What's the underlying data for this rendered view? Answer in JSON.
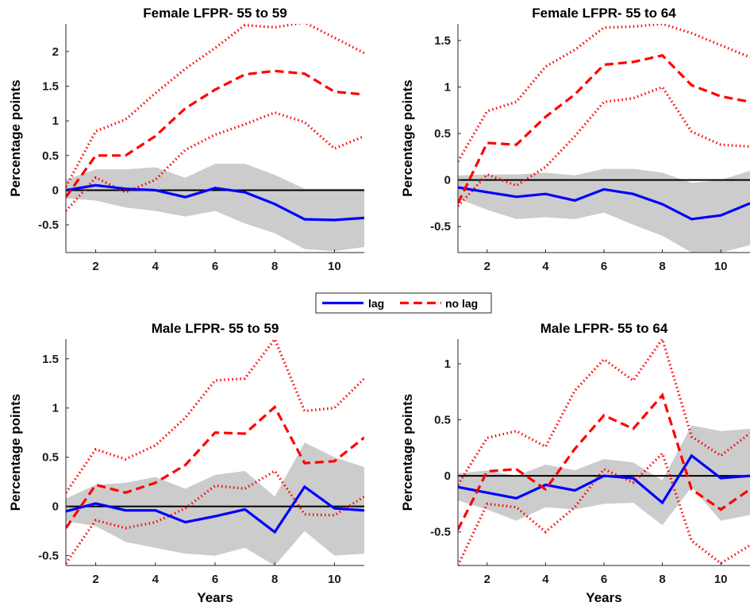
{
  "legend": {
    "location": "center",
    "entries": [
      {
        "label": "lag",
        "color": "#0000ff",
        "style": "solid"
      },
      {
        "label": "no lag",
        "color": "#ff0000",
        "style": "dashed"
      }
    ]
  },
  "colors": {
    "lag": "#0000ff",
    "no_lag": "#ff0000",
    "band": "#cccccc",
    "zero_line": "#000000"
  },
  "chart_data": [
    {
      "type": "line",
      "title": "Female LFPR- 55 to 59",
      "ylabel": "Percentage points",
      "xlabel": "",
      "xlim": [
        1,
        11
      ],
      "ylim": [
        -0.9,
        2.4
      ],
      "xticks": [
        2,
        4,
        6,
        8,
        10
      ],
      "yticks": [
        -0.5,
        0,
        0.5,
        1,
        1.5,
        2
      ],
      "x": [
        1,
        2,
        3,
        4,
        5,
        6,
        7,
        8,
        9,
        10,
        11
      ],
      "series": [
        {
          "name": "lag",
          "values": [
            0.0,
            0.07,
            0.02,
            0.0,
            -0.1,
            0.03,
            -0.03,
            -0.2,
            -0.42,
            -0.43,
            -0.4
          ]
        },
        {
          "name": "no lag",
          "values": [
            -0.1,
            0.5,
            0.5,
            0.78,
            1.18,
            1.45,
            1.67,
            1.72,
            1.68,
            1.42,
            1.38
          ]
        }
      ],
      "no_lag_band": {
        "upper": [
          0.05,
          0.85,
          1.02,
          1.4,
          1.75,
          2.05,
          2.38,
          2.35,
          2.42,
          2.2,
          1.98
        ],
        "lower": [
          -0.3,
          0.18,
          -0.03,
          0.15,
          0.58,
          0.8,
          0.95,
          1.12,
          0.98,
          0.6,
          0.78
        ]
      },
      "lag_band": {
        "upper": [
          0.15,
          0.3,
          0.3,
          0.33,
          0.18,
          0.38,
          0.38,
          0.22,
          0.02,
          0.02,
          0.02
        ],
        "lower": [
          -0.12,
          -0.15,
          -0.25,
          -0.3,
          -0.38,
          -0.3,
          -0.48,
          -0.62,
          -0.85,
          -0.88,
          -0.82
        ]
      }
    },
    {
      "type": "line",
      "title": "Female LFPR- 55 to 64",
      "ylabel": "Percentage points",
      "xlabel": "",
      "xlim": [
        1,
        11
      ],
      "ylim": [
        -0.78,
        1.68
      ],
      "xticks": [
        2,
        4,
        6,
        8,
        10
      ],
      "yticks": [
        -0.5,
        0,
        0.5,
        1,
        1.5
      ],
      "x": [
        1,
        2,
        3,
        4,
        5,
        6,
        7,
        8,
        9,
        10,
        11
      ],
      "series": [
        {
          "name": "lag",
          "values": [
            -0.08,
            -0.13,
            -0.18,
            -0.15,
            -0.22,
            -0.1,
            -0.15,
            -0.26,
            -0.42,
            -0.38,
            -0.25
          ]
        },
        {
          "name": "no lag",
          "values": [
            -0.25,
            0.4,
            0.38,
            0.68,
            0.92,
            1.24,
            1.27,
            1.34,
            1.02,
            0.9,
            0.84
          ]
        }
      ],
      "no_lag_band": {
        "upper": [
          0.2,
          0.74,
          0.84,
          1.22,
          1.4,
          1.64,
          1.65,
          1.68,
          1.58,
          1.45,
          1.32
        ],
        "lower": [
          -0.28,
          0.06,
          -0.06,
          0.14,
          0.47,
          0.84,
          0.88,
          1.0,
          0.52,
          0.38,
          0.36
        ]
      },
      "lag_band": {
        "upper": [
          0.05,
          0.06,
          0.06,
          0.08,
          0.05,
          0.12,
          0.12,
          0.08,
          -0.03,
          0.0,
          0.1
        ],
        "lower": [
          -0.2,
          -0.32,
          -0.42,
          -0.4,
          -0.42,
          -0.35,
          -0.48,
          -0.6,
          -0.78,
          -0.78,
          -0.7
        ]
      }
    },
    {
      "type": "line",
      "title": "Male LFPR- 55 to 59",
      "ylabel": "Percentage points",
      "xlabel": "Years",
      "xlim": [
        1,
        11
      ],
      "ylim": [
        -0.6,
        1.7
      ],
      "xticks": [
        2,
        4,
        6,
        8,
        10
      ],
      "yticks": [
        -0.5,
        0,
        0.5,
        1,
        1.5
      ],
      "x": [
        1,
        2,
        3,
        4,
        5,
        6,
        7,
        8,
        9,
        10,
        11
      ],
      "series": [
        {
          "name": "lag",
          "values": [
            -0.05,
            0.03,
            -0.04,
            -0.04,
            -0.16,
            -0.1,
            -0.03,
            -0.26,
            0.2,
            -0.02,
            -0.04
          ]
        },
        {
          "name": "no lag",
          "values": [
            -0.22,
            0.22,
            0.14,
            0.24,
            0.42,
            0.75,
            0.74,
            1.01,
            0.44,
            0.46,
            0.7
          ]
        }
      ],
      "no_lag_band": {
        "upper": [
          0.14,
          0.58,
          0.48,
          0.62,
          0.9,
          1.28,
          1.3,
          1.7,
          0.97,
          1.0,
          1.3
        ],
        "lower": [
          -0.58,
          -0.14,
          -0.22,
          -0.16,
          -0.02,
          0.21,
          0.18,
          0.36,
          -0.08,
          -0.09,
          0.1
        ]
      },
      "lag_band": {
        "upper": [
          0.08,
          0.22,
          0.24,
          0.3,
          0.18,
          0.32,
          0.36,
          0.1,
          0.65,
          0.5,
          0.4
        ],
        "lower": [
          -0.15,
          -0.2,
          -0.36,
          -0.42,
          -0.48,
          -0.5,
          -0.42,
          -0.6,
          -0.25,
          -0.5,
          -0.48
        ]
      }
    },
    {
      "type": "line",
      "title": "Male LFPR- 55 to 64",
      "ylabel": "Percentage points",
      "xlabel": "Years",
      "xlim": [
        1,
        11
      ],
      "ylim": [
        -0.8,
        1.22
      ],
      "xticks": [
        2,
        4,
        6,
        8,
        10
      ],
      "yticks": [
        -0.5,
        0,
        0.5,
        1
      ],
      "x": [
        1,
        2,
        3,
        4,
        5,
        6,
        7,
        8,
        9,
        10,
        11
      ],
      "series": [
        {
          "name": "lag",
          "values": [
            -0.1,
            -0.15,
            -0.2,
            -0.08,
            -0.13,
            0.0,
            -0.02,
            -0.24,
            0.18,
            -0.02,
            0.0
          ]
        },
        {
          "name": "no lag",
          "values": [
            -0.48,
            0.04,
            0.06,
            -0.12,
            0.24,
            0.54,
            0.42,
            0.72,
            -0.12,
            -0.3,
            -0.12
          ]
        }
      ],
      "no_lag_band": {
        "upper": [
          -0.08,
          0.34,
          0.4,
          0.26,
          0.76,
          1.04,
          0.85,
          1.22,
          0.35,
          0.18,
          0.38
        ]
      },
      "no_lag_band_lower": [
        -0.8,
        -0.25,
        -0.28,
        -0.5,
        -0.28,
        0.06,
        -0.06,
        0.2,
        -0.58,
        -0.78,
        -0.62
      ],
      "lag_band": {
        "upper": [
          0.02,
          0.05,
          0.0,
          0.1,
          0.05,
          0.15,
          0.12,
          -0.04,
          0.45,
          0.4,
          0.42
        ],
        "lower": [
          -0.22,
          -0.3,
          -0.4,
          -0.28,
          -0.3,
          -0.25,
          -0.24,
          -0.44,
          -0.1,
          -0.4,
          -0.35
        ]
      }
    }
  ]
}
